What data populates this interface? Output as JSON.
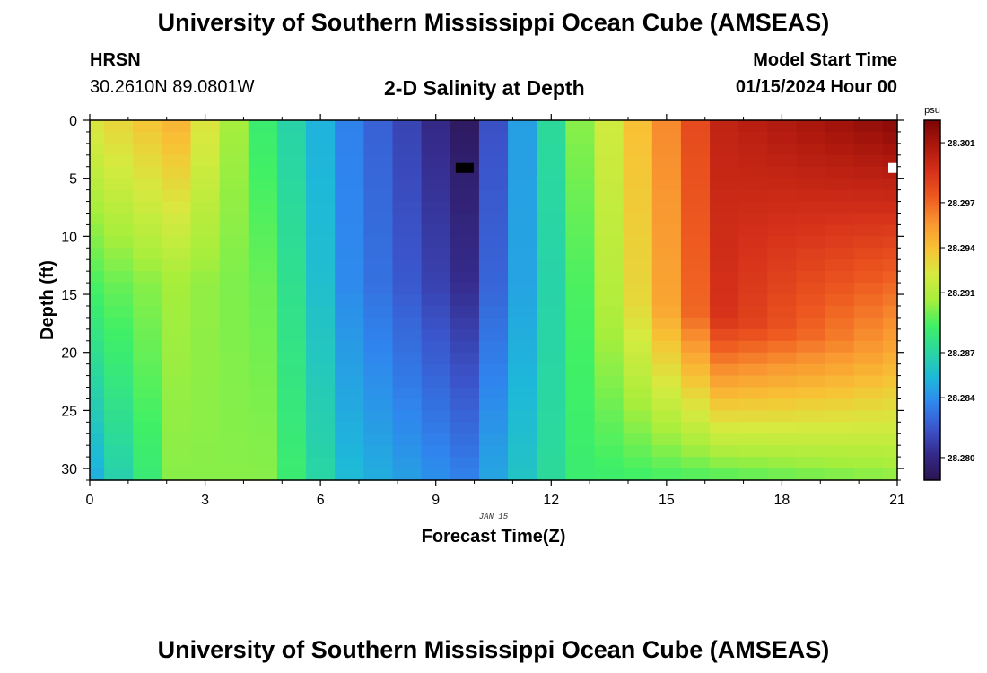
{
  "header": {
    "title": "University of Southern Mississippi Ocean Cube (AMSEAS)",
    "station": "HRSN",
    "coords": "30.2610N  89.0801W",
    "chart_title": "2-D Salinity at Depth",
    "model_label": "Model Start Time",
    "model_time": "01/15/2024 Hour 00"
  },
  "footer": {
    "title": "University of Southern Mississippi Ocean Cube (AMSEAS)"
  },
  "chart_data": {
    "type": "heatmap",
    "title": "2-D Salinity at Depth",
    "xlabel": "Forecast Time(Z)",
    "ylabel": "Depth (ft)",
    "date_label": "JAN 15",
    "xlim": [
      0,
      21
    ],
    "ylim": [
      31,
      0
    ],
    "x_ticks": [
      0,
      3,
      6,
      9,
      12,
      15,
      18,
      21
    ],
    "y_ticks": [
      0,
      5,
      10,
      15,
      20,
      25,
      30
    ],
    "colorbar": {
      "unit": "psu",
      "range": [
        28.2785,
        28.3025
      ],
      "tick_labels": [
        "28.301",
        "28.297",
        "28.294",
        "28.291",
        "28.287",
        "28.284",
        "28.280"
      ],
      "stops": [
        "#2a1450",
        "#352a8a",
        "#3b55cc",
        "#2f86ee",
        "#1eb8d9",
        "#2ad7a0",
        "#3ff066",
        "#a6ee3c",
        "#d6ea3f",
        "#f8c235",
        "#f99631",
        "#ee5a20",
        "#d6311a",
        "#ad180d",
        "#7c0405"
      ]
    },
    "hours": [
      0,
      0.75,
      1.5,
      2.25,
      3,
      3.75,
      4.5,
      5.25,
      6,
      6.75,
      7.5,
      8.25,
      9,
      9.75,
      10.5,
      11.25,
      12,
      12.75,
      13.5,
      14.25,
      15,
      15.75,
      16.5,
      17.25,
      18,
      18.75,
      19.5,
      20.25,
      21
    ],
    "depth_profile_key": [
      {
        "hour": 0,
        "surface": 28.2925,
        "mid": 28.289,
        "deep": 28.285
      },
      {
        "hour": 2.25,
        "surface": 28.2945,
        "mid": 28.2905,
        "deep": 28.29
      },
      {
        "hour": 4.5,
        "surface": 28.2885,
        "mid": 28.2895,
        "deep": 28.29
      },
      {
        "hour": 6.75,
        "surface": 28.2835,
        "mid": 28.2838,
        "deep": 28.2855
      },
      {
        "hour": 9.75,
        "surface": 28.279,
        "mid": 28.2803,
        "deep": 28.2835
      },
      {
        "hour": 12.75,
        "surface": 28.29,
        "mid": 28.289,
        "deep": 28.2885
      },
      {
        "hour": 16.5,
        "surface": 28.3,
        "mid": 28.299,
        "deep": 28.289
      },
      {
        "hour": 21,
        "surface": 28.302,
        "mid": 28.295,
        "deep": 28.29
      }
    ],
    "missing_cells": [
      {
        "hour": 9.75,
        "depth": 4,
        "value": "no data (black)"
      },
      {
        "hour": 21,
        "depth": 4,
        "value": "no data (white)"
      }
    ]
  }
}
